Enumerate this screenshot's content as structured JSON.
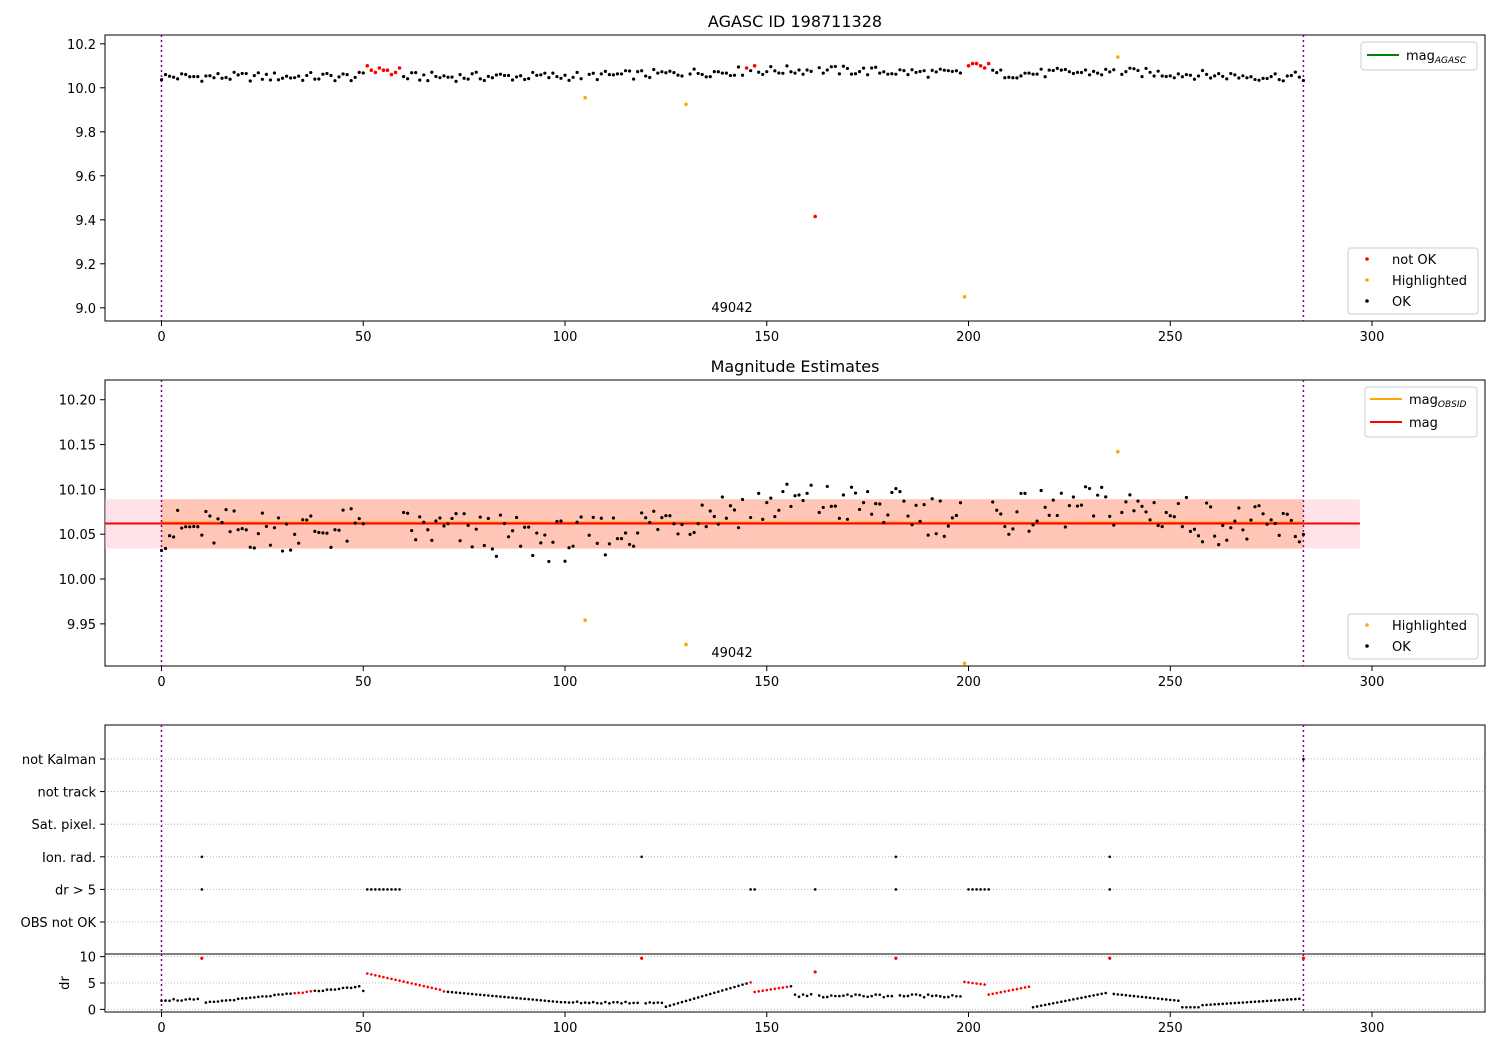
{
  "chart_data": [
    {
      "type": "scatter",
      "title": "AGASC ID 198711328",
      "xlabel": "",
      "ylabel": "",
      "xlim": [
        -14,
        328
      ],
      "ylim": [
        8.94,
        10.24
      ],
      "xticks": [
        0,
        50,
        100,
        150,
        200,
        250,
        300
      ],
      "yticks": [
        9.0,
        9.2,
        9.4,
        9.6,
        9.8,
        10.0,
        10.2
      ],
      "ytick_labels": [
        "9.0",
        "9.2",
        "9.4",
        "9.6",
        "9.8",
        "10.0",
        "10.2"
      ],
      "vlines": [
        0,
        283
      ],
      "annotation": {
        "text": "49042",
        "x": 130
      },
      "lines": [
        {
          "name": "mag_AGASC",
          "label_main": "mag",
          "label_sub": "AGASC",
          "y": 10.3,
          "color": "#008000"
        }
      ],
      "legend_top": "top-right",
      "legend_bottom": "bottom-right",
      "legend_points": [
        {
          "name": "not OK",
          "color": "#ff0000"
        },
        {
          "name": "Highlighted",
          "color": "#ffa500"
        },
        {
          "name": "OK",
          "color": "#000000"
        }
      ],
      "base_series": {
        "x_start": 0,
        "x_end": 283,
        "step": 1,
        "y_mean": 10.05,
        "y_spread": 0.035
      },
      "red_points": [
        [
          51,
          10.1
        ],
        [
          52,
          10.08
        ],
        [
          53,
          10.07
        ],
        [
          54,
          10.09
        ],
        [
          55,
          10.08
        ],
        [
          56,
          10.08
        ],
        [
          57,
          10.06
        ],
        [
          58,
          10.07
        ],
        [
          59,
          10.09
        ],
        [
          145,
          10.09
        ],
        [
          147,
          10.1
        ],
        [
          162,
          9.415
        ],
        [
          200,
          10.1
        ],
        [
          201,
          10.11
        ],
        [
          202,
          10.11
        ],
        [
          203,
          10.1
        ],
        [
          204,
          10.09
        ],
        [
          205,
          10.11
        ]
      ],
      "orange_points": [
        [
          105,
          9.955
        ],
        [
          130,
          9.925
        ],
        [
          199,
          9.05
        ],
        [
          237,
          10.14
        ]
      ]
    },
    {
      "type": "scatter",
      "title": "Magnitude Estimates",
      "xlabel": "",
      "ylabel": "",
      "xlim": [
        -14,
        328
      ],
      "ylim": [
        9.903,
        10.222
      ],
      "xticks": [
        0,
        50,
        100,
        150,
        200,
        250,
        300
      ],
      "yticks": [
        9.95,
        10.0,
        10.05,
        10.1,
        10.15,
        10.2
      ],
      "ytick_labels": [
        "9.95",
        "10.00",
        "10.05",
        "10.10",
        "10.15",
        "10.20"
      ],
      "vlines": [
        0,
        283
      ],
      "annotation": {
        "text": "49042",
        "x": 130
      },
      "bands": [
        {
          "name": "mag-band",
          "x0": -14,
          "x1": 297,
          "y0": 10.034,
          "y1": 10.089,
          "color": "#ffc0cb",
          "opacity": 0.45
        },
        {
          "name": "mag-obsid-band",
          "x0": 0,
          "x1": 283,
          "y0": 10.034,
          "y1": 10.089,
          "color": "#ffa07a",
          "opacity": 0.45
        }
      ],
      "lines": [
        {
          "name": "mag_OBSID",
          "label_main": "mag",
          "label_sub": "OBSID",
          "y": 10.063,
          "x0": 0,
          "x1": 283,
          "color": "#ffa500"
        },
        {
          "name": "mag",
          "label_main": "mag",
          "label_sub": "",
          "y": 10.062,
          "x0": -14,
          "x1": 297,
          "color": "#ff0000"
        }
      ],
      "legend_top": "top-right",
      "legend_bottom": "bottom-right",
      "legend_points": [
        {
          "name": "Highlighted",
          "color": "#ffa500"
        },
        {
          "name": "OK",
          "color": "#000000"
        }
      ],
      "base_series": {
        "x_start": 0,
        "x_end": 283,
        "step": 1,
        "y_mean": 10.055,
        "y_spread": 0.035
      },
      "orange_points": [
        [
          105,
          9.954
        ],
        [
          130,
          9.927
        ],
        [
          199,
          9.906
        ],
        [
          237,
          10.142
        ]
      ]
    },
    {
      "type": "scatter",
      "title": "",
      "xlabel": "",
      "ylabel": "",
      "xlim": [
        -14,
        328
      ],
      "vlines": [
        0,
        283
      ],
      "categories": [
        "not Kalman",
        "not track",
        "Sat. pixel.",
        "Ion. rad.",
        "dr > 5",
        "OBS not OK"
      ],
      "flag_points": {
        "Ion. rad.": [
          10,
          119,
          182,
          235
        ],
        "dr > 5": [
          10,
          51,
          52,
          53,
          54,
          55,
          56,
          57,
          58,
          59,
          146,
          147,
          162,
          182,
          200,
          201,
          202,
          203,
          204,
          205,
          235
        ],
        "not Kalman": [
          283
        ]
      }
    },
    {
      "type": "scatter",
      "title": "",
      "xlabel": "",
      "ylabel": "dr",
      "xlim": [
        -14,
        328
      ],
      "ylim": [
        -0.5,
        10.5
      ],
      "xticks": [
        0,
        50,
        100,
        150,
        200,
        250,
        300
      ],
      "yticks": [
        0,
        5,
        10
      ],
      "ytick_labels": [
        "0",
        "5",
        "10"
      ],
      "vlines": [
        0,
        283
      ],
      "red_points": [
        [
          10,
          9.7
        ],
        [
          119,
          9.7
        ],
        [
          162,
          7.1
        ],
        [
          182,
          9.7
        ],
        [
          235,
          9.7
        ],
        [
          283,
          9.7
        ]
      ],
      "red_ranges": [
        [
          33,
          37
        ],
        [
          51,
          70
        ],
        [
          146,
          155
        ],
        [
          199,
          215
        ]
      ]
    }
  ]
}
